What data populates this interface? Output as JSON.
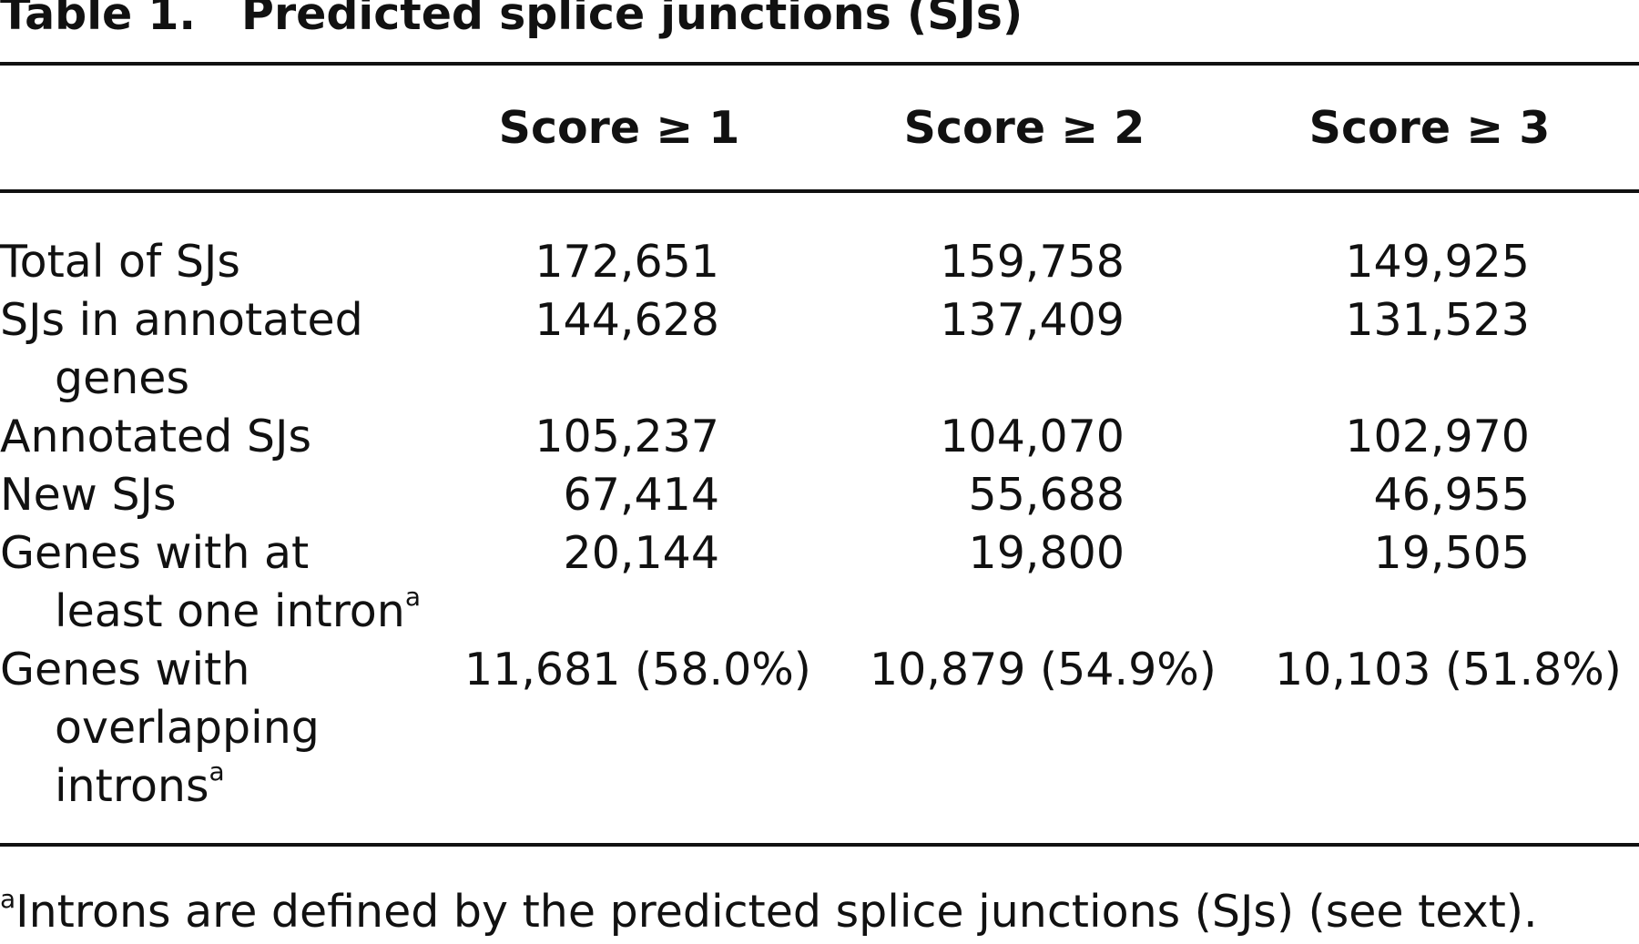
{
  "caption": {
    "label": "Table 1.",
    "title": "Predicted splice junctions (SJs)"
  },
  "columns": [
    "Score ≥ 1",
    "Score ≥ 2",
    "Score ≥ 3"
  ],
  "rows": [
    {
      "label": "Total of SJs",
      "values": [
        "172,651",
        "159,758",
        "149,925"
      ]
    },
    {
      "label": "SJs in annotated",
      "label_cont": "genes",
      "values": [
        "144,628",
        "137,409",
        "131,523"
      ]
    },
    {
      "label": "Annotated SJs",
      "values": [
        "105,237",
        "104,070",
        "102,970"
      ]
    },
    {
      "label": "New SJs",
      "values": [
        "67,414",
        "55,688",
        "46,955"
      ]
    },
    {
      "label": "Genes with at",
      "label_cont": "least one intron",
      "footnote_mark": "a",
      "values": [
        "20,144",
        "19,800",
        "19,505"
      ]
    },
    {
      "label": "Genes with",
      "label_cont": "overlapping",
      "label_cont2": "introns",
      "footnote_mark": "a",
      "values": [
        "11,681 (58.0%)",
        "10,879 (54.9%)",
        "10,103 (51.8%)"
      ]
    }
  ],
  "footnote": {
    "mark": "a",
    "text": "Introns are defined by the predicted splice junctions (SJs) (see text)."
  }
}
